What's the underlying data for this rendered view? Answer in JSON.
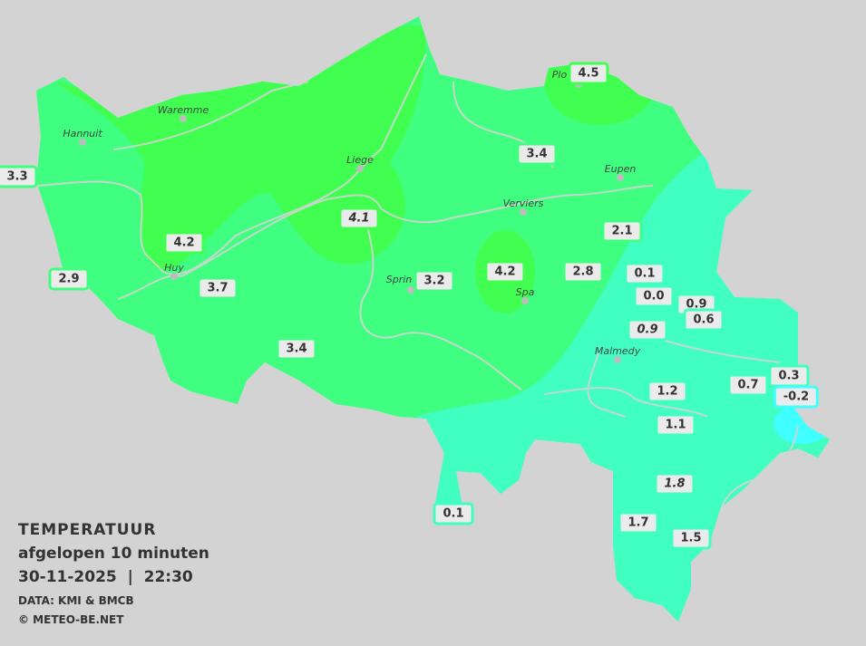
{
  "legend": {
    "title": "TEMPERATUUR",
    "subtitle": "afgelopen 10 minuten",
    "datetime": "30-11-2025  |  22:30",
    "source": "DATA: KMI & BMCB",
    "copyright": "© METEO-BE.NET"
  },
  "colors": {
    "background": "#d3d3d3",
    "zone_4": "#40ff50",
    "zone_3": "#40ff80",
    "zone_1": "#40ffc0",
    "zone_0": "#40ffff",
    "label_fill": "#ebebeb",
    "rivers": "#d3d3d3"
  },
  "cities": [
    "Hannuit",
    "Waremme",
    "Liege",
    "Eupen",
    "Verviers",
    "Sprin",
    "Spa",
    "Huy",
    "Malmedy",
    "Plo"
  ],
  "stations": [
    {
      "value": "3.3",
      "italic": false,
      "zone": "zone_3"
    },
    {
      "value": "4.2",
      "italic": false,
      "zone": "zone_4"
    },
    {
      "value": "2.9",
      "italic": false,
      "zone": "zone_3"
    },
    {
      "value": "3.7",
      "italic": false,
      "zone": "zone_3"
    },
    {
      "value": "3.4",
      "italic": false,
      "zone": "zone_3"
    },
    {
      "value": "4.1",
      "italic": true,
      "zone": "zone_4"
    },
    {
      "value": "3.2",
      "italic": false,
      "zone": "zone_3"
    },
    {
      "value": "4.2",
      "italic": false,
      "zone": "zone_4"
    },
    {
      "value": "2.8",
      "italic": false,
      "zone": "zone_3"
    },
    {
      "value": "3.4",
      "italic": false,
      "zone": "zone_3"
    },
    {
      "value": "4.5",
      "italic": false,
      "zone": "zone_4"
    },
    {
      "value": "2.1",
      "italic": false,
      "zone": "zone_3"
    },
    {
      "value": "0.1",
      "italic": false,
      "zone": "zone_1"
    },
    {
      "value": "0.0",
      "italic": false,
      "zone": "zone_1"
    },
    {
      "value": "0.9",
      "italic": false,
      "zone": "zone_1"
    },
    {
      "value": "0.6",
      "italic": false,
      "zone": "zone_1"
    },
    {
      "value": "0.9",
      "italic": true,
      "zone": "zone_1"
    },
    {
      "value": "1.2",
      "italic": false,
      "zone": "zone_1"
    },
    {
      "value": "1.1",
      "italic": false,
      "zone": "zone_1"
    },
    {
      "value": "0.7",
      "italic": false,
      "zone": "zone_1"
    },
    {
      "value": "0.3",
      "italic": false,
      "zone": "zone_1"
    },
    {
      "value": "-0.2",
      "italic": false,
      "zone": "zone_0"
    },
    {
      "value": "1.8",
      "italic": true,
      "zone": "zone_1"
    },
    {
      "value": "1.7",
      "italic": false,
      "zone": "zone_1"
    },
    {
      "value": "1.5",
      "italic": false,
      "zone": "zone_1"
    },
    {
      "value": "0.1",
      "italic": false,
      "zone": "zone_1"
    }
  ]
}
